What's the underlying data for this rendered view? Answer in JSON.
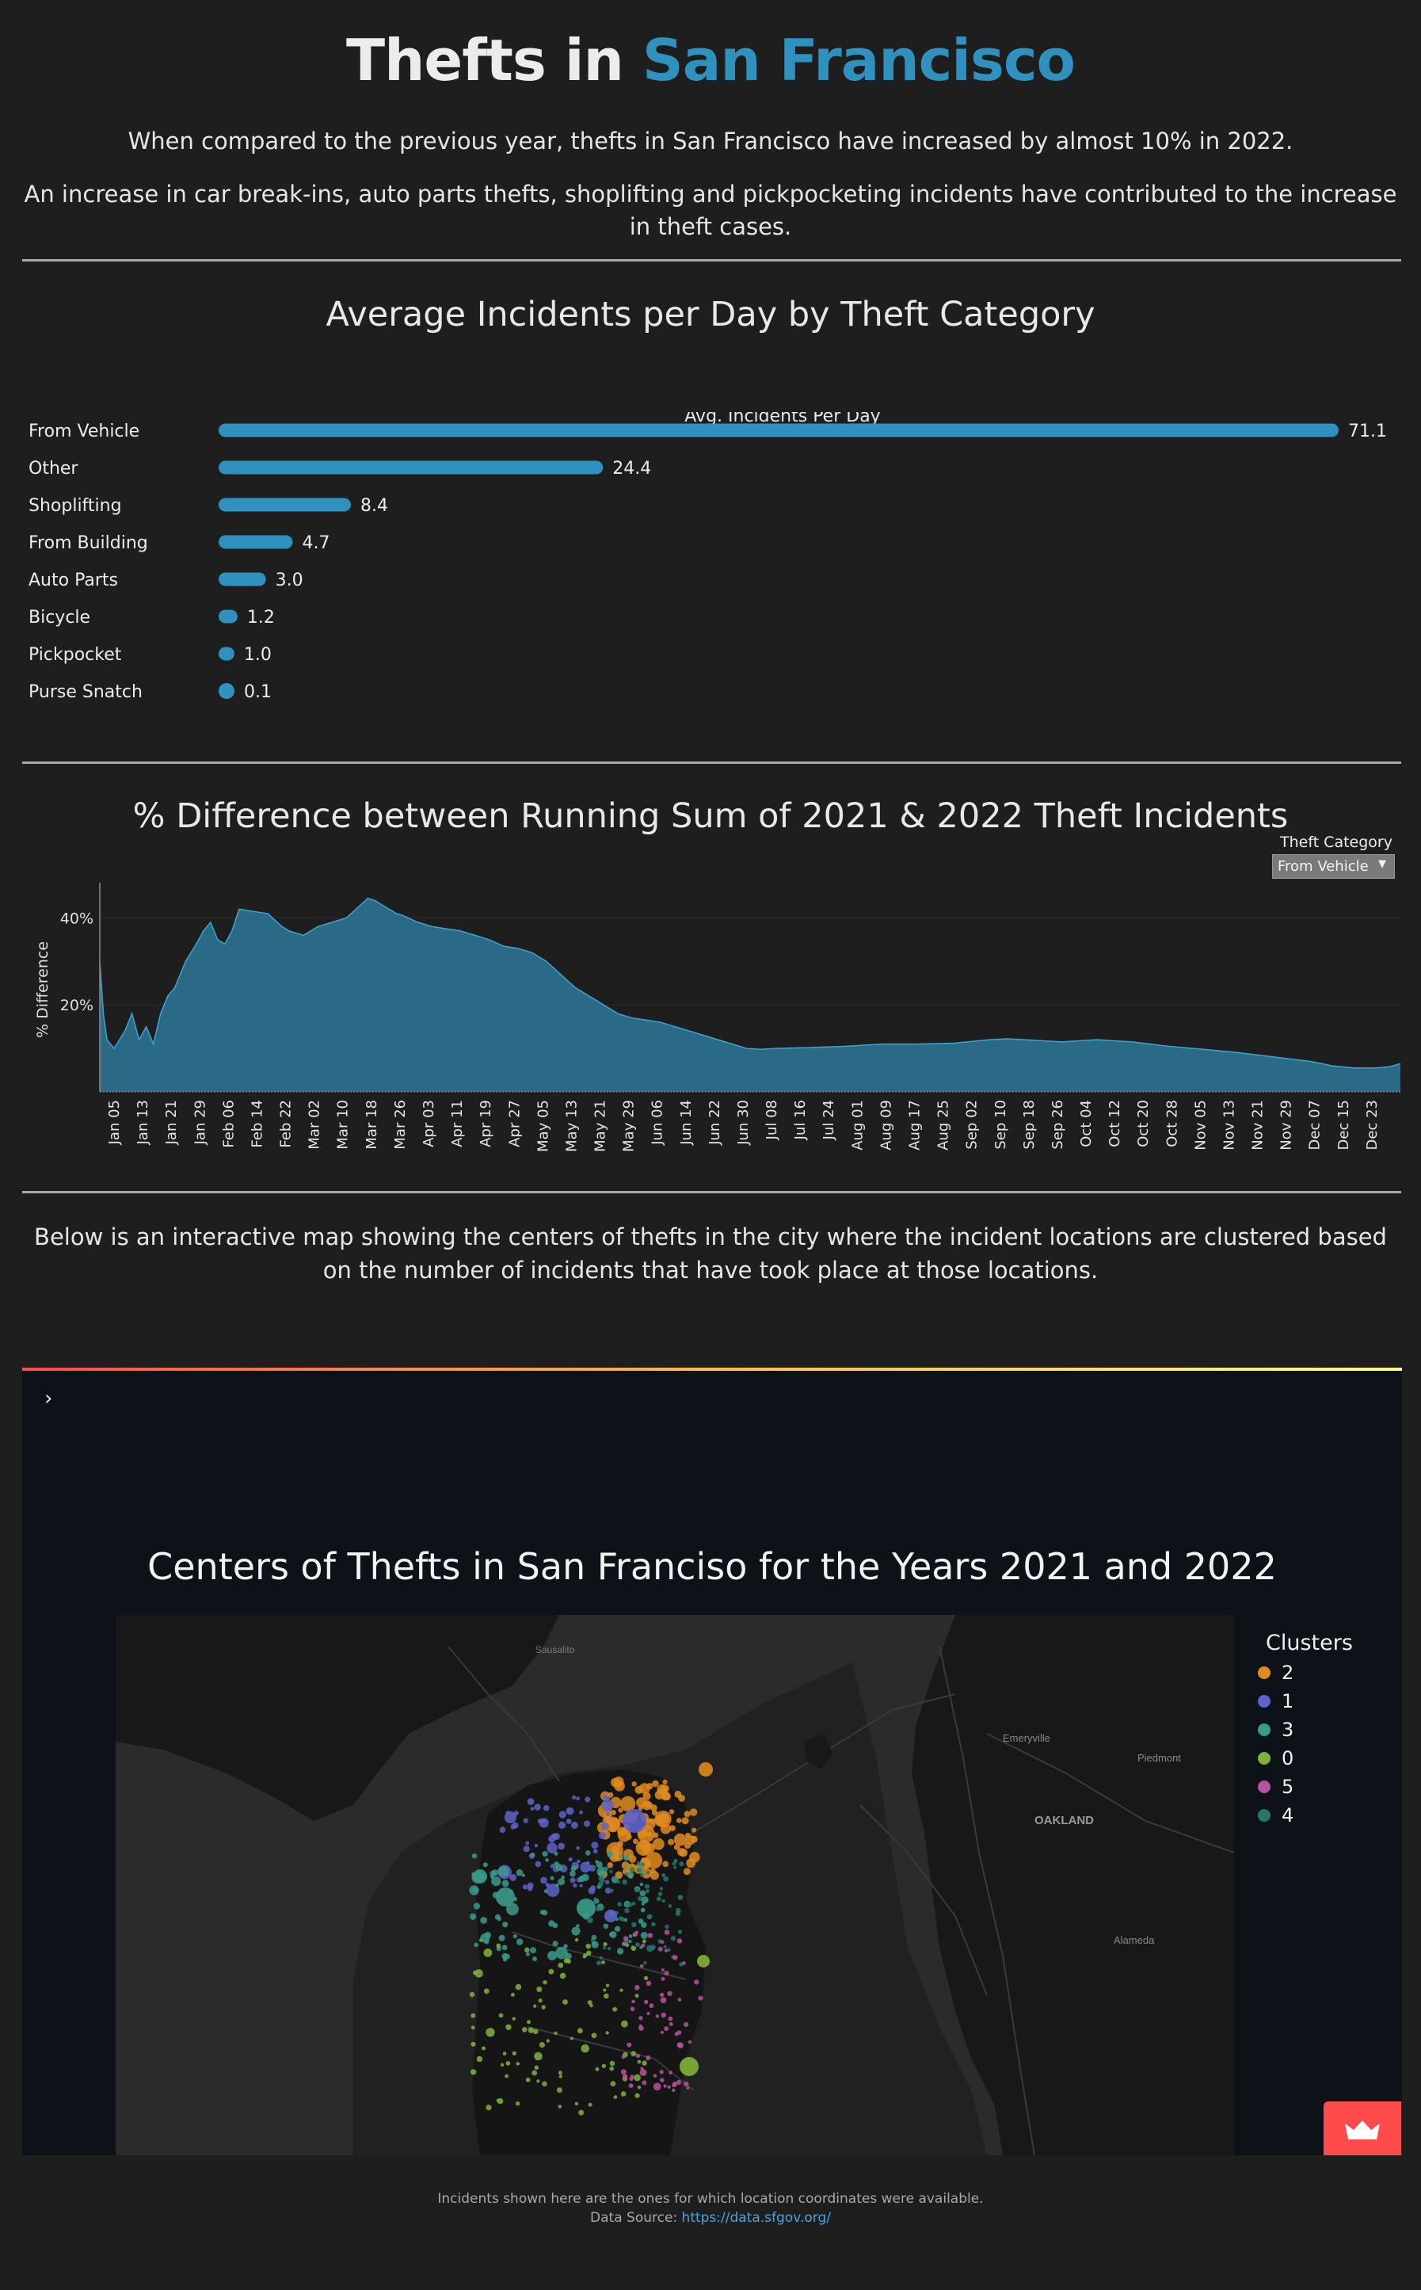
{
  "header": {
    "title_part1": "Thefts in ",
    "title_part2": "San Francisco",
    "intro_line1": "When compared to the previous year, thefts in San Francisco have increased by almost 10% in 2022.",
    "intro_line2": "An increase in car break-ins, auto parts thefts, shoplifting and pickpocketing incidents have contributed to the increase in theft cases."
  },
  "colors": {
    "accent": "#2f91bd",
    "bar": "#2f91bd",
    "area": "#2b6a87",
    "area_line": "#3fa3cf"
  },
  "bar_section": {
    "title": "Average Incidents per Day by Theft Category"
  },
  "area_section": {
    "title": "% Difference between Running Sum of 2021 & 2022 Theft Incidents",
    "dropdown_label": "Theft Category",
    "dropdown_value": "From Vehicle"
  },
  "map_section": {
    "intro": "Below is an interactive map showing the centers of thefts in the city where the incident locations are clustered based on the number of incidents that have took place at those locations.",
    "collapse_icon": "chevron-right-icon",
    "title": "Centers of Thefts in San Franciso for the Years 2021 and 2022",
    "legend_title": "Clusters",
    "legend": [
      {
        "label": "2",
        "color": "#e08a1e"
      },
      {
        "label": "1",
        "color": "#5d63c9"
      },
      {
        "label": "3",
        "color": "#3a9b8a"
      },
      {
        "label": "0",
        "color": "#7fb23a"
      },
      {
        "label": "5",
        "color": "#b6539b"
      },
      {
        "label": "4",
        "color": "#23786b"
      }
    ],
    "map_labels": {
      "sausalito": "Sausalito",
      "emeryville": "Emeryville",
      "piedmont": "Piedmont",
      "oakland": "OAKLAND",
      "alameda": "Alameda"
    },
    "badge_icon": "crown-icon"
  },
  "footer": {
    "note": "Incidents shown here are the ones for which location coordinates were available.",
    "source_label": "Data Source: ",
    "source_link": "https://data.sfgov.org/"
  },
  "chart_data": [
    {
      "type": "bar",
      "title": "Average Incidents per Day by Theft Category",
      "xlabel": "Avg. Incidents Per Day",
      "ylabel": "",
      "categories": [
        "From Vehicle",
        "Other",
        "Shoplifting",
        "From Building",
        "Auto Parts",
        "Bicycle",
        "Pickpocket",
        "Purse Snatch"
      ],
      "values": [
        71.1,
        24.4,
        8.4,
        4.7,
        3.0,
        1.2,
        1.0,
        0.1
      ],
      "labels": [
        "71.1",
        "24.4",
        "8.4",
        "4.7",
        "3.0",
        "1.2",
        "1.0",
        "0.1"
      ],
      "xlim": [
        0,
        71.1
      ]
    },
    {
      "type": "area",
      "title": "% Difference between Running Sum of 2021 & 2022 Theft Incidents",
      "ylabel": "% Difference",
      "xlabel": "",
      "y_ticks": [
        "20%",
        "40%"
      ],
      "y_tick_values": [
        20,
        40
      ],
      "ylim": [
        0,
        47
      ],
      "x_tick_labels": [
        "Jan 05",
        "Jan 13",
        "Jan 21",
        "Jan 29",
        "Feb 06",
        "Feb 14",
        "Feb 22",
        "Mar 02",
        "Mar 10",
        "Mar 18",
        "Mar 26",
        "Apr 03",
        "Apr 11",
        "Apr 19",
        "Apr 27",
        "May 05",
        "May 13",
        "May 21",
        "May 29",
        "Jun 06",
        "Jun 14",
        "Jun 22",
        "Jun 30",
        "Jul 08",
        "Jul 16",
        "Jul 24",
        "Aug 01",
        "Aug 09",
        "Aug 17",
        "Aug 25",
        "Sep 02",
        "Sep 10",
        "Sep 18",
        "Sep 26",
        "Oct 04",
        "Oct 12",
        "Oct 20",
        "Oct 28",
        "Nov 05",
        "Nov 13",
        "Nov 21",
        "Nov 29",
        "Dec 07",
        "Dec 15",
        "Dec 23"
      ],
      "series": [
        {
          "name": "From Vehicle",
          "day_of_year": [
            1,
            2,
            3,
            5,
            8,
            10,
            12,
            14,
            16,
            18,
            20,
            22,
            25,
            28,
            30,
            32,
            34,
            36,
            38,
            40,
            44,
            48,
            52,
            54,
            58,
            62,
            66,
            70,
            74,
            76,
            78,
            80,
            82,
            84,
            86,
            90,
            94,
            98,
            102,
            106,
            110,
            114,
            118,
            122,
            126,
            130,
            134,
            138,
            142,
            146,
            150,
            154,
            158,
            162,
            166,
            170,
            174,
            178,
            182,
            186,
            190,
            200,
            210,
            220,
            230,
            240,
            250,
            255,
            260,
            270,
            280,
            290,
            300,
            310,
            320,
            330,
            340,
            346,
            352,
            358,
            362,
            365
          ],
          "values": [
            30,
            18,
            12,
            10,
            14,
            18,
            12,
            15,
            11,
            18,
            22,
            24,
            30,
            34,
            37,
            39,
            35,
            34,
            37,
            42,
            41.5,
            41,
            38,
            37,
            36,
            38,
            39,
            40,
            43,
            44.5,
            44,
            43,
            42,
            41,
            40.5,
            39,
            38,
            37.5,
            37,
            36,
            35,
            33.5,
            33,
            32,
            30,
            27,
            24,
            22,
            20,
            18,
            17,
            16.5,
            16,
            15,
            14,
            13,
            12,
            11,
            10,
            9.8,
            10,
            10.2,
            10.5,
            11,
            11,
            11.2,
            12,
            12.2,
            12,
            11.5,
            12,
            11.5,
            10.5,
            9.8,
            9,
            8,
            7,
            6,
            5.5,
            5.5,
            5.8,
            6.5
          ]
        }
      ]
    }
  ]
}
